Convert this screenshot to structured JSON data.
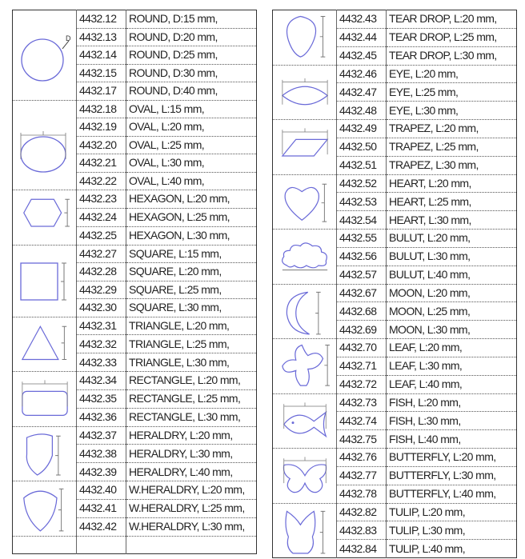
{
  "shape_color": "#6a6ad8",
  "left": [
    {
      "shape": "round",
      "items": [
        [
          "4432.12",
          "ROUND, D:15 mm,"
        ],
        [
          "4432.13",
          "ROUND, D:20 mm,"
        ],
        [
          "4432.14",
          "ROUND, D:25 mm,"
        ],
        [
          "4432.15",
          "ROUND, D:30 mm,"
        ],
        [
          "4432.17",
          "ROUND, D:40 mm,"
        ]
      ]
    },
    {
      "shape": "oval",
      "items": [
        [
          "4432.18",
          "OVAL, L:15 mm,"
        ],
        [
          "4432.19",
          "OVAL, L:20 mm,"
        ],
        [
          "4432.20",
          "OVAL, L:25 mm,"
        ],
        [
          "4432.21",
          "OVAL, L:30 mm,"
        ],
        [
          "4432.22",
          "OVAL, L:40 mm,"
        ]
      ]
    },
    {
      "shape": "hexagon",
      "items": [
        [
          "4432.23",
          "HEXAGON, L:20 mm,"
        ],
        [
          "4432.24",
          "HEXAGON, L:25 mm,"
        ],
        [
          "4432.25",
          "HEXAGON, L:30 mm,"
        ]
      ]
    },
    {
      "shape": "square",
      "items": [
        [
          "4432.27",
          "SQUARE, L:15 mm,"
        ],
        [
          "4432.28",
          "SQUARE, L:20 mm,"
        ],
        [
          "4432.29",
          "SQUARE, L:25 mm,"
        ],
        [
          "4432.30",
          "SQUARE, L:30 mm,"
        ]
      ]
    },
    {
      "shape": "triangle",
      "items": [
        [
          "4432.31",
          "TRIANGLE, L:20 mm,"
        ],
        [
          "4432.32",
          "TRIANGLE, L:25 mm,"
        ],
        [
          "4432.33",
          "TRIANGLE, L:30 mm,"
        ]
      ]
    },
    {
      "shape": "rectangle",
      "items": [
        [
          "4432.34",
          "RECTANGLE, L:20 mm,"
        ],
        [
          "4432.35",
          "RECTANGLE, L:25 mm,"
        ],
        [
          "4432.36",
          "RECTANGLE, L:30 mm,"
        ]
      ]
    },
    {
      "shape": "heraldry",
      "items": [
        [
          "4432.37",
          "HERALDRY, L:20 mm,"
        ],
        [
          "4432.38",
          "HERALDRY, L:30 mm,"
        ],
        [
          "4432.39",
          "HERALDRY, L:40 mm,"
        ]
      ]
    },
    {
      "shape": "w-heraldry",
      "items": [
        [
          "4432.40",
          "W.HERALDRY, L:20 mm,"
        ],
        [
          "4432.41",
          "W.HERALDRY, L:25 mm,"
        ],
        [
          "4432.42",
          "W.HERALDRY, L:30 mm,"
        ]
      ]
    },
    {
      "shape": "none",
      "items": [
        [
          "",
          ""
        ]
      ]
    }
  ],
  "right": [
    {
      "shape": "tear-drop",
      "items": [
        [
          "4432.43",
          "TEAR DROP, L:20 mm,"
        ],
        [
          "4432.44",
          "TEAR DROP, L:25 mm,"
        ],
        [
          "4432.45",
          "TEAR DROP, L:30 mm,"
        ]
      ]
    },
    {
      "shape": "eye",
      "items": [
        [
          "4432.46",
          "EYE, L:20 mm,"
        ],
        [
          "4432.47",
          "EYE, L:25 mm,"
        ],
        [
          "4432.48",
          "EYE, L:30 mm,"
        ]
      ]
    },
    {
      "shape": "trapez",
      "items": [
        [
          "4432.49",
          "TRAPEZ, L:20 mm,"
        ],
        [
          "4432.50",
          "TRAPEZ, L:25 mm,"
        ],
        [
          "4432.51",
          "TRAPEZ, L:30 mm,"
        ]
      ]
    },
    {
      "shape": "heart",
      "items": [
        [
          "4432.52",
          "HEART, L:20 mm,"
        ],
        [
          "4432.53",
          "HEART, L:25 mm,"
        ],
        [
          "4432.54",
          "HEART, L:30 mm,"
        ]
      ]
    },
    {
      "shape": "cloud",
      "items": [
        [
          "4432.55",
          "BULUT, L:20 mm,"
        ],
        [
          "4432.56",
          "BULUT, L:30 mm,"
        ],
        [
          "4432.57",
          "BULUT, L:40 mm,"
        ]
      ]
    },
    {
      "shape": "moon",
      "items": [
        [
          "4432.67",
          "MOON, L:20 mm,"
        ],
        [
          "4432.68",
          "MOON, L:25 mm,"
        ],
        [
          "4432.69",
          "MOON, L:30 mm,"
        ]
      ]
    },
    {
      "shape": "leaf",
      "items": [
        [
          "4432.70",
          "LEAF, L:20 mm,"
        ],
        [
          "4432.71",
          "LEAF, L:30 mm,"
        ],
        [
          "4432.72",
          "LEAF, L:40 mm,"
        ]
      ]
    },
    {
      "shape": "fish",
      "items": [
        [
          "4432.73",
          "FISH, L:20 mm,"
        ],
        [
          "4432.74",
          "FISH, L:30 mm,"
        ],
        [
          "4432.75",
          "FISH, L:40 mm,"
        ]
      ]
    },
    {
      "shape": "butterfly",
      "items": [
        [
          "4432.76",
          "BUTTERFLY, L:20 mm,"
        ],
        [
          "4432.77",
          "BUTTERFLY, L:30 mm,"
        ],
        [
          "4432.78",
          "BUTTERFLY, L:40 mm,"
        ]
      ]
    },
    {
      "shape": "tulip",
      "items": [
        [
          "4432.82",
          "TULIP, L:20 mm,"
        ],
        [
          "4432.83",
          "TULIP, L:30 mm,"
        ],
        [
          "4432.84",
          "TULIP, L:40 mm,"
        ]
      ]
    }
  ]
}
